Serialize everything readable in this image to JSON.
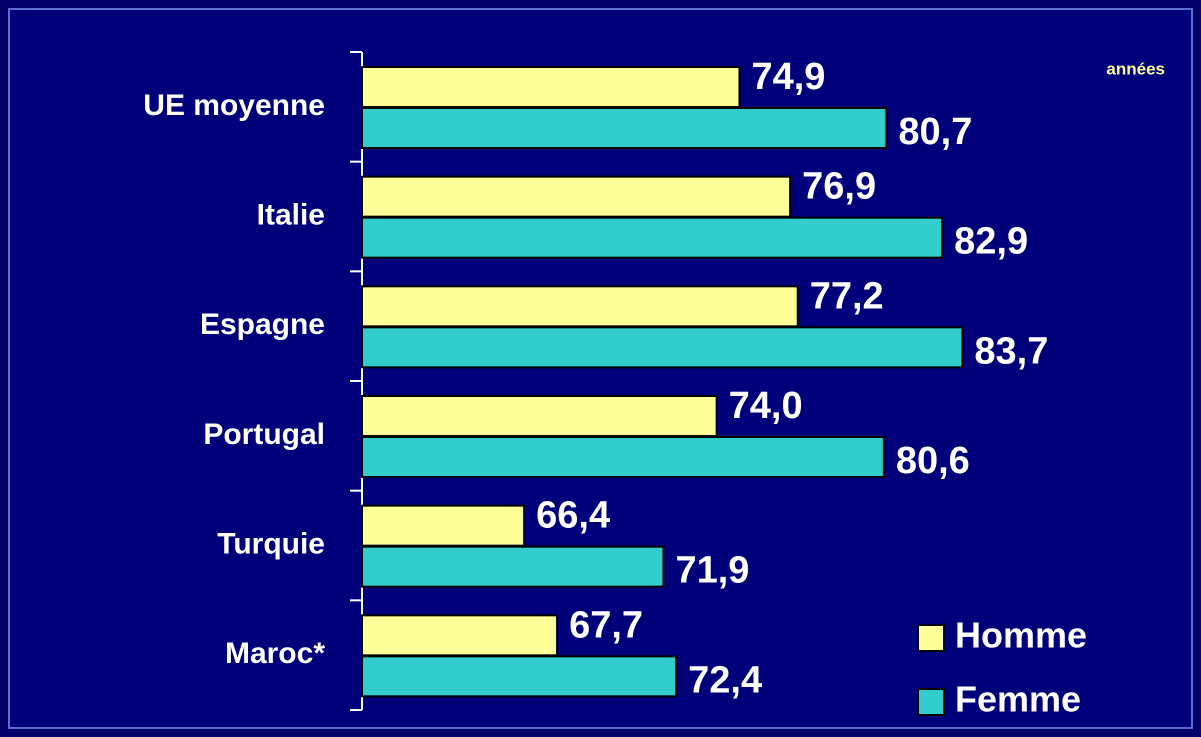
{
  "chart_data": {
    "type": "hbar",
    "annotation": "années",
    "categories": [
      "UE moyenne",
      "Italie",
      "Espagne",
      "Portugal",
      "Turquie",
      "Maroc*"
    ],
    "series": [
      {
        "name": "Homme",
        "color": "#ffff99",
        "values": [
          74.9,
          76.9,
          77.2,
          74.0,
          66.4,
          67.7
        ],
        "value_labels": [
          "74,9",
          "76,9",
          "77,2",
          "74,0",
          "66,4",
          "67,7"
        ]
      },
      {
        "name": "Femme",
        "color": "#33cccc",
        "values": [
          80.7,
          82.9,
          83.7,
          80.6,
          71.9,
          72.4
        ],
        "value_labels": [
          "80,7",
          "82,9",
          "83,7",
          "80,6",
          "71,9",
          "72,4"
        ]
      }
    ],
    "xlim": [
      60,
      90
    ],
    "legend": "lower right"
  }
}
